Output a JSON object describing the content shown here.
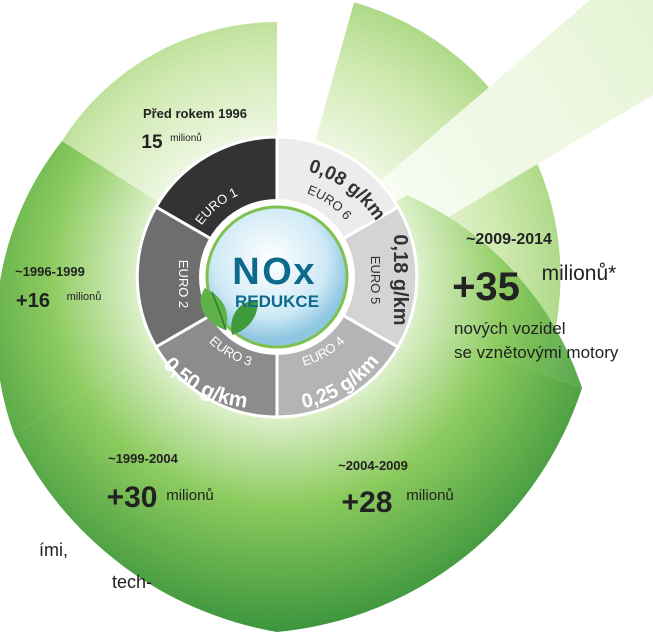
{
  "colors": {
    "green_dark": "#2e8b3c",
    "green_mid": "#5fb24a",
    "green_light": "#c8e6a8",
    "green_pale": "#eaf5dc",
    "gray_dark": "#333333",
    "gray_mid": "#6e6e6e",
    "gray_light": "#b4b4b4",
    "gray_pale": "#ececec",
    "hub_blue": "#0e6a8c"
  },
  "hub": {
    "title_n": "N",
    "title_o": "O",
    "title_x": "x",
    "subtitle": "REDUKCE"
  },
  "norms": [
    {
      "euro": "EURO 1",
      "limit": ""
    },
    {
      "euro": "EURO 2",
      "limit": ""
    },
    {
      "euro": "EURO 3",
      "limit": "0,50 g/km"
    },
    {
      "euro": "EURO 4",
      "limit": "0,25 g/km"
    },
    {
      "euro": "EURO 5",
      "limit": "0,18 g/km"
    },
    {
      "euro": "EURO 6",
      "limit": "0,08 g/km"
    }
  ],
  "periods": [
    {
      "period": "Před rokem 1996",
      "count": "15",
      "unit": "milionů"
    },
    {
      "period": "~1996-1999",
      "count": "+16",
      "unit": "milionů"
    },
    {
      "period": "~1999-2004",
      "count": "+30",
      "unit": "milionů"
    },
    {
      "period": "~2004-2009",
      "count": "+28",
      "unit": "milionů"
    },
    {
      "period": "~2009-2014",
      "count": "+35",
      "unit": "milionů*",
      "note_line1": "nových vozidel",
      "note_line2": "se vznětovými motory"
    }
  ],
  "side_text": {
    "line1": "ími,",
    "line2": "tech-"
  }
}
